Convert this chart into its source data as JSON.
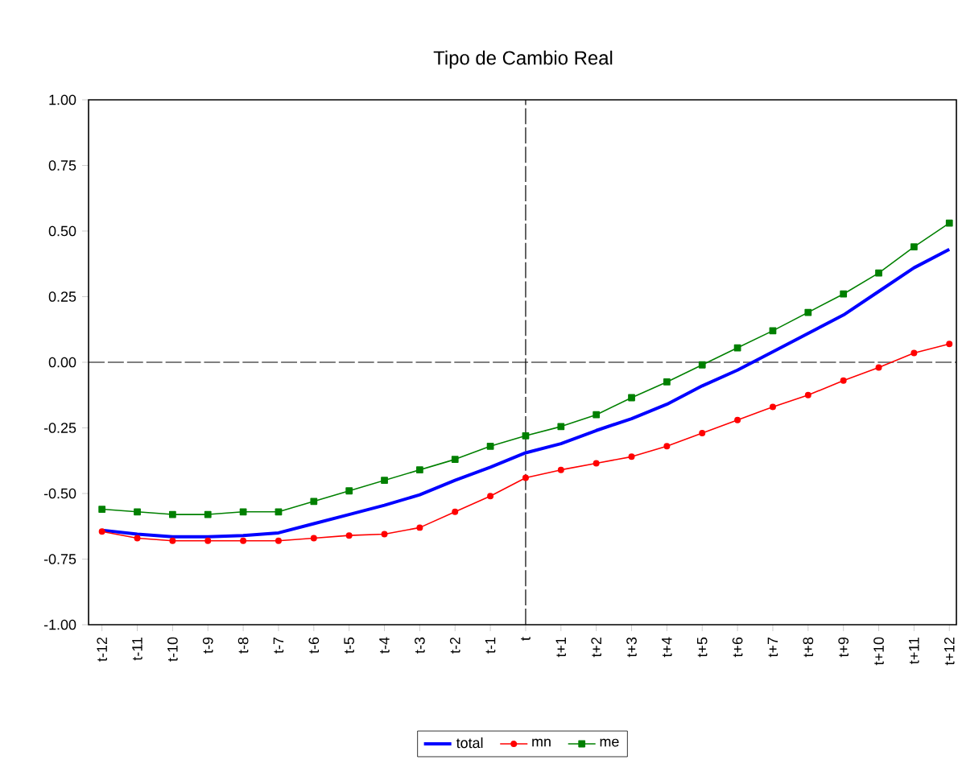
{
  "chart_data": {
    "type": "line",
    "title": "Tipo de Cambio Real",
    "categories": [
      "t-12",
      "t-11",
      "t-10",
      "t-9",
      "t-8",
      "t-7",
      "t-6",
      "t-5",
      "t-4",
      "t-3",
      "t-2",
      "t-1",
      "t",
      "t+1",
      "t+2",
      "t+3",
      "t+4",
      "t+5",
      "t+6",
      "t+7",
      "t+8",
      "t+9",
      "t+10",
      "t+11",
      "t+12"
    ],
    "series": [
      {
        "name": "total",
        "color": "#0000ff",
        "marker": "none",
        "values": [
          -0.64,
          -0.655,
          -0.665,
          -0.665,
          -0.66,
          -0.65,
          -0.615,
          -0.58,
          -0.545,
          -0.505,
          -0.45,
          -0.4,
          -0.345,
          -0.31,
          -0.26,
          -0.215,
          -0.16,
          -0.09,
          -0.03,
          0.04,
          0.11,
          0.18,
          0.27,
          0.36,
          0.43
        ]
      },
      {
        "name": "mn",
        "color": "#ff0000",
        "marker": "circle",
        "values": [
          -0.645,
          -0.67,
          -0.68,
          -0.68,
          -0.68,
          -0.68,
          -0.67,
          -0.66,
          -0.655,
          -0.63,
          -0.57,
          -0.51,
          -0.44,
          -0.41,
          -0.385,
          -0.36,
          -0.32,
          -0.27,
          -0.22,
          -0.17,
          -0.125,
          -0.07,
          -0.02,
          0.035,
          0.07
        ]
      },
      {
        "name": "me",
        "color": "#008000",
        "marker": "square",
        "values": [
          -0.56,
          -0.57,
          -0.58,
          -0.58,
          -0.57,
          -0.57,
          -0.53,
          -0.49,
          -0.45,
          -0.41,
          -0.37,
          -0.32,
          -0.28,
          -0.245,
          -0.2,
          -0.135,
          -0.075,
          -0.01,
          0.055,
          0.12,
          0.19,
          0.26,
          0.34,
          0.44,
          0.53
        ]
      }
    ],
    "ylim": [
      -1,
      1
    ],
    "yticks": [
      {
        "value": -1,
        "label": "-1.00"
      },
      {
        "value": -0.75,
        "label": "-0.75"
      },
      {
        "value": -0.5,
        "label": "-0.50"
      },
      {
        "value": -0.25,
        "label": "-0.25"
      },
      {
        "value": 0,
        "label": "0.00"
      },
      {
        "value": 0.25,
        "label": "0.25"
      },
      {
        "value": 0.5,
        "label": "0.50"
      },
      {
        "value": 0.75,
        "label": "0.75"
      },
      {
        "value": 1,
        "label": "1.00"
      }
    ],
    "ref_lines": [
      {
        "axis": "y",
        "value": 0,
        "color": "#000000",
        "line_style": "dashed"
      },
      {
        "axis": "x",
        "value": "t",
        "color": "#000000",
        "line_style": "dashed"
      }
    ],
    "grid": false,
    "legend": "bottom"
  }
}
